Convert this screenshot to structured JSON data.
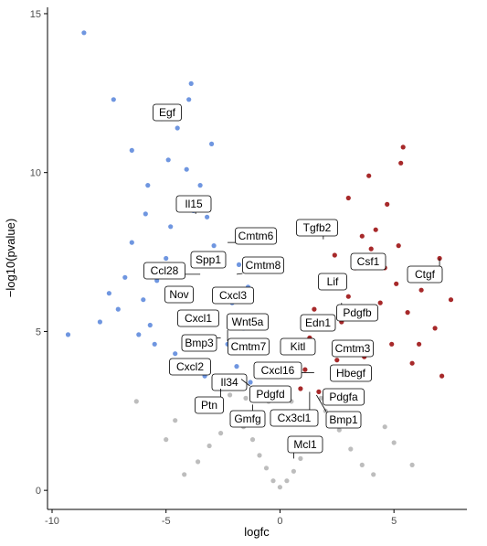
{
  "chart_data": {
    "type": "scatter",
    "title": "",
    "xlabel": "logfc",
    "ylabel": "−log10(pvalue)",
    "xlim": [
      -10.2,
      8.2
    ],
    "ylim": [
      -0.6,
      15.2
    ],
    "x_ticks": [
      -10,
      -5,
      0,
      5
    ],
    "x_tick_labels": [
      "-10",
      "-5",
      "0",
      "5"
    ],
    "y_ticks": [
      0,
      5,
      10,
      15
    ],
    "y_tick_labels": [
      "0",
      "5",
      "10",
      "15"
    ],
    "grid": false,
    "legend": "none",
    "colors": {
      "down": "#6f96e0",
      "up": "#a7292a",
      "not_significant": "#bdbdbd"
    },
    "series": [
      {
        "group": "down",
        "points": [
          [
            -8.6,
            14.4
          ],
          [
            -7.3,
            12.3
          ],
          [
            -3.9,
            12.8
          ],
          [
            -4.0,
            12.3
          ],
          [
            -5.2,
            11.7
          ],
          [
            -4.5,
            11.4
          ],
          [
            -6.5,
            10.7
          ],
          [
            -5.8,
            9.6
          ],
          [
            -9.3,
            4.9
          ],
          [
            -7.9,
            5.3
          ],
          [
            -7.5,
            6.2
          ],
          [
            -7.1,
            5.7
          ],
          [
            -6.8,
            6.7
          ],
          [
            -6.5,
            7.8
          ],
          [
            -6.0,
            6.0
          ],
          [
            -5.7,
            5.2
          ],
          [
            -5.4,
            6.6
          ],
          [
            -5.0,
            7.3
          ],
          [
            -4.8,
            8.3
          ],
          [
            -4.4,
            9.2
          ],
          [
            -4.1,
            10.1
          ],
          [
            -3.8,
            8.8
          ],
          [
            -3.5,
            9.6
          ],
          [
            -3.2,
            8.6
          ],
          [
            -2.9,
            7.7
          ],
          [
            -6.2,
            4.9
          ],
          [
            -5.5,
            4.6
          ],
          [
            -4.6,
            4.3
          ],
          [
            -4.2,
            5.6
          ],
          [
            -3.6,
            4.0
          ],
          [
            -3.3,
            3.6
          ],
          [
            -2.6,
            3.2
          ],
          [
            -2.3,
            4.6
          ],
          [
            -1.9,
            3.9
          ],
          [
            -1.6,
            5.1
          ],
          [
            -1.3,
            3.4
          ],
          [
            -1.1,
            4.4
          ],
          [
            -0.9,
            3.1
          ],
          [
            -5.9,
            8.7
          ],
          [
            -4.9,
            10.4
          ],
          [
            -3.0,
            10.9
          ],
          [
            -2.7,
            6.2
          ],
          [
            -2.1,
            5.9
          ],
          [
            -1.8,
            7.1
          ],
          [
            -1.4,
            6.4
          ]
        ]
      },
      {
        "group": "up",
        "points": [
          [
            7.0,
            7.3
          ],
          [
            5.4,
            10.8
          ],
          [
            5.3,
            10.3
          ],
          [
            3.9,
            9.9
          ],
          [
            3.0,
            9.2
          ],
          [
            4.7,
            9.0
          ],
          [
            4.2,
            8.2
          ],
          [
            5.2,
            7.7
          ],
          [
            6.2,
            6.3
          ],
          [
            7.5,
            6.0
          ],
          [
            6.8,
            5.1
          ],
          [
            6.1,
            4.6
          ],
          [
            5.6,
            5.6
          ],
          [
            5.1,
            6.5
          ],
          [
            4.6,
            7.0
          ],
          [
            4.0,
            7.6
          ],
          [
            3.6,
            8.0
          ],
          [
            3.3,
            7.0
          ],
          [
            3.0,
            6.1
          ],
          [
            2.7,
            5.3
          ],
          [
            2.4,
            7.4
          ],
          [
            2.1,
            8.2
          ],
          [
            1.8,
            6.6
          ],
          [
            1.5,
            5.7
          ],
          [
            1.3,
            4.8
          ],
          [
            1.1,
            3.8
          ],
          [
            0.9,
            3.2
          ],
          [
            2.5,
            4.1
          ],
          [
            3.7,
            4.2
          ],
          [
            4.9,
            4.6
          ],
          [
            5.8,
            4.0
          ],
          [
            7.1,
            3.6
          ],
          [
            4.4,
            5.9
          ],
          [
            2.9,
            3.5
          ],
          [
            1.7,
            3.1
          ]
        ]
      },
      {
        "group": "not_significant",
        "points": [
          [
            0.0,
            0.1
          ],
          [
            -0.3,
            0.3
          ],
          [
            0.3,
            0.3
          ],
          [
            -0.6,
            0.7
          ],
          [
            0.6,
            0.6
          ],
          [
            -0.9,
            1.1
          ],
          [
            0.9,
            1.0
          ],
          [
            -1.2,
            1.6
          ],
          [
            1.2,
            1.5
          ],
          [
            -1.6,
            2.0
          ],
          [
            1.5,
            2.1
          ],
          [
            -2.1,
            2.4
          ],
          [
            2.0,
            2.5
          ],
          [
            -2.6,
            1.8
          ],
          [
            2.6,
            1.9
          ],
          [
            -3.1,
            1.4
          ],
          [
            3.1,
            1.3
          ],
          [
            -3.6,
            0.9
          ],
          [
            3.6,
            0.8
          ],
          [
            -4.2,
            0.5
          ],
          [
            4.1,
            0.5
          ],
          [
            -0.5,
            2.8
          ],
          [
            0.5,
            2.8
          ],
          [
            -1.5,
            2.9
          ],
          [
            1.8,
            2.9
          ],
          [
            -2.2,
            3.0
          ],
          [
            2.4,
            2.9
          ],
          [
            -6.3,
            2.8
          ],
          [
            5.8,
            0.8
          ],
          [
            -3.4,
            2.6
          ],
          [
            3.4,
            2.4
          ],
          [
            -4.6,
            2.2
          ],
          [
            4.6,
            2.0
          ],
          [
            -5.0,
            1.6
          ],
          [
            5.0,
            1.5
          ]
        ]
      }
    ],
    "annotations": [
      {
        "gene": "Egf",
        "x": -5.2,
        "y": 11.9
      },
      {
        "gene": "Il15",
        "x": -3.7,
        "y": 8.7
      },
      {
        "gene": "Cmtm6",
        "x": -2.3,
        "y": 7.8
      },
      {
        "gene": "Spp1",
        "x": -2.8,
        "y": 7.2
      },
      {
        "gene": "Ccl28",
        "x": -3.5,
        "y": 6.8
      },
      {
        "gene": "Cmtm8",
        "x": -1.9,
        "y": 6.8
      },
      {
        "gene": "Nov",
        "x": -3.8,
        "y": 6.2
      },
      {
        "gene": "Cxcl3",
        "x": -2.7,
        "y": 6.3
      },
      {
        "gene": "Cxcl1",
        "x": -2.7,
        "y": 5.6
      },
      {
        "gene": "Wnt5a",
        "x": -2.3,
        "y": 4.7
      },
      {
        "gene": "Bmp3",
        "x": -2.6,
        "y": 4.8
      },
      {
        "gene": "Cmtm7",
        "x": -2.0,
        "y": 4.5
      },
      {
        "gene": "Cxcl2",
        "x": -3.1,
        "y": 4.1
      },
      {
        "gene": "Il34",
        "x": -2.4,
        "y": 3.4
      },
      {
        "gene": "Ptn",
        "x": -2.6,
        "y": 3.2
      },
      {
        "gene": "Pdgfd",
        "x": -1.7,
        "y": 3.5
      },
      {
        "gene": "Gmfg",
        "x": -1.2,
        "y": 2.7
      },
      {
        "gene": "Tgfb2",
        "x": 1.9,
        "y": 7.9
      },
      {
        "gene": "Csf1",
        "x": 3.9,
        "y": 7.0
      },
      {
        "gene": "Ctgf",
        "x": 7.0,
        "y": 7.3
      },
      {
        "gene": "Lif",
        "x": 2.8,
        "y": 6.4
      },
      {
        "gene": "Pdgfb",
        "x": 2.7,
        "y": 5.9
      },
      {
        "gene": "Edn1",
        "x": 1.9,
        "y": 5.3
      },
      {
        "gene": "Kitl",
        "x": 1.1,
        "y": 4.4
      },
      {
        "gene": "Cmtm3",
        "x": 2.3,
        "y": 4.7
      },
      {
        "gene": "Cxcl16",
        "x": 1.5,
        "y": 3.7
      },
      {
        "gene": "Hbegf",
        "x": 2.4,
        "y": 3.9
      },
      {
        "gene": "Pdgfa",
        "x": 1.9,
        "y": 3.1
      },
      {
        "gene": "Cx3cl1",
        "x": 1.3,
        "y": 3.1
      },
      {
        "gene": "Bmp1",
        "x": 1.6,
        "y": 3.0
      },
      {
        "gene": "Mcl1",
        "x": 0.6,
        "y": 1.0
      }
    ]
  }
}
